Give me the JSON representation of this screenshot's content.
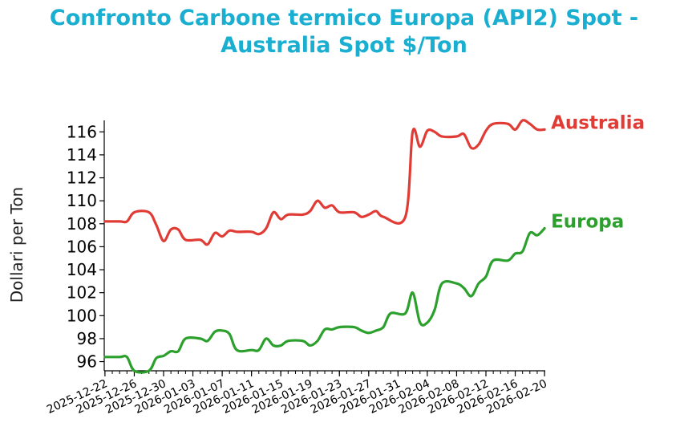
{
  "chart_data": {
    "type": "line",
    "title_line1": "Confronto Carbone termico Europa (API2) Spot -",
    "title_line2": "Australia Spot $/Ton",
    "xlabel": "",
    "ylabel": "Dollari per Ton",
    "xlim": [
      "2025-12-22",
      "2026-02-20"
    ],
    "ylim": [
      95.2,
      117.0
    ],
    "yticks": [
      96,
      98,
      100,
      102,
      104,
      106,
      108,
      110,
      112,
      114,
      116
    ],
    "xticks": [
      "2025-12-22",
      "2025-12-26",
      "2025-12-30",
      "2026-01-03",
      "2026-01-07",
      "2026-01-11",
      "2026-01-15",
      "2026-01-19",
      "2026-01-23",
      "2026-01-27",
      "2026-01-31",
      "2026-02-04",
      "2026-02-08",
      "2026-02-12",
      "2026-02-16",
      "2026-02-20"
    ],
    "grid": false,
    "legend": "end-of-line labels",
    "series": [
      {
        "name": "Australia",
        "color": "#e03c35",
        "points": [
          [
            "2025-12-22",
            108.2
          ],
          [
            "2025-12-24",
            108.2
          ],
          [
            "2025-12-25",
            108.2
          ],
          [
            "2025-12-26",
            109.0
          ],
          [
            "2025-12-28",
            109.0
          ],
          [
            "2025-12-29",
            107.9
          ],
          [
            "2025-12-30",
            106.5
          ],
          [
            "2025-12-31",
            107.5
          ],
          [
            "2026-01-01",
            107.5
          ],
          [
            "2026-01-02",
            106.6
          ],
          [
            "2026-01-04",
            106.6
          ],
          [
            "2026-01-05",
            106.2
          ],
          [
            "2026-01-06",
            107.2
          ],
          [
            "2026-01-07",
            106.9
          ],
          [
            "2026-01-08",
            107.4
          ],
          [
            "2026-01-09",
            107.3
          ],
          [
            "2026-01-11",
            107.3
          ],
          [
            "2026-01-12",
            107.1
          ],
          [
            "2026-01-13",
            107.6
          ],
          [
            "2026-01-14",
            109.0
          ],
          [
            "2026-01-15",
            108.4
          ],
          [
            "2026-01-16",
            108.8
          ],
          [
            "2026-01-18",
            108.8
          ],
          [
            "2026-01-19",
            109.1
          ],
          [
            "2026-01-20",
            110.0
          ],
          [
            "2026-01-21",
            109.4
          ],
          [
            "2026-01-22",
            109.6
          ],
          [
            "2026-01-23",
            109.0
          ],
          [
            "2026-01-25",
            109.0
          ],
          [
            "2026-01-26",
            108.6
          ],
          [
            "2026-01-27",
            108.8
          ],
          [
            "2026-01-28",
            109.1
          ],
          [
            "2026-01-29",
            108.6
          ],
          [
            "2026-02-01",
            108.6
          ],
          [
            "2026-02-02",
            116.0
          ],
          [
            "2026-02-03",
            114.7
          ],
          [
            "2026-02-04",
            116.1
          ],
          [
            "2026-02-05",
            116.0
          ],
          [
            "2026-02-06",
            115.6
          ],
          [
            "2026-02-08",
            115.6
          ],
          [
            "2026-02-09",
            115.8
          ],
          [
            "2026-02-10",
            114.6
          ],
          [
            "2026-02-11",
            114.9
          ],
          [
            "2026-02-12",
            116.1
          ],
          [
            "2026-02-13",
            116.7
          ],
          [
            "2026-02-15",
            116.7
          ],
          [
            "2026-02-16",
            116.2
          ],
          [
            "2026-02-17",
            117.0
          ],
          [
            "2026-02-18",
            116.7
          ],
          [
            "2026-02-19",
            116.2
          ],
          [
            "2026-02-20",
            116.2
          ]
        ]
      },
      {
        "name": "Europa",
        "color": "#2ca02c",
        "points": [
          [
            "2025-12-22",
            96.4
          ],
          [
            "2025-12-24",
            96.4
          ],
          [
            "2025-12-25",
            96.4
          ],
          [
            "2025-12-26",
            95.2
          ],
          [
            "2025-12-28",
            95.2
          ],
          [
            "2025-12-29",
            96.3
          ],
          [
            "2025-12-30",
            96.5
          ],
          [
            "2025-12-31",
            96.9
          ],
          [
            "2026-01-01",
            96.9
          ],
          [
            "2026-01-02",
            98.0
          ],
          [
            "2026-01-04",
            98.0
          ],
          [
            "2026-01-05",
            97.8
          ],
          [
            "2026-01-06",
            98.6
          ],
          [
            "2026-01-07",
            98.7
          ],
          [
            "2026-01-08",
            98.4
          ],
          [
            "2026-01-09",
            97.0
          ],
          [
            "2026-01-11",
            97.0
          ],
          [
            "2026-01-12",
            97.0
          ],
          [
            "2026-01-13",
            98.0
          ],
          [
            "2026-01-14",
            97.4
          ],
          [
            "2026-01-15",
            97.4
          ],
          [
            "2026-01-16",
            97.8
          ],
          [
            "2026-01-18",
            97.8
          ],
          [
            "2026-01-19",
            97.4
          ],
          [
            "2026-01-20",
            97.8
          ],
          [
            "2026-01-21",
            98.8
          ],
          [
            "2026-01-22",
            98.8
          ],
          [
            "2026-01-23",
            99.0
          ],
          [
            "2026-01-25",
            99.0
          ],
          [
            "2026-01-26",
            98.7
          ],
          [
            "2026-01-27",
            98.5
          ],
          [
            "2026-01-28",
            98.7
          ],
          [
            "2026-01-29",
            99.0
          ],
          [
            "2026-01-30",
            100.2
          ],
          [
            "2026-02-01",
            100.2
          ],
          [
            "2026-02-02",
            102.0
          ],
          [
            "2026-02-03",
            99.4
          ],
          [
            "2026-02-04",
            99.4
          ],
          [
            "2026-02-05",
            100.5
          ],
          [
            "2026-02-06",
            102.8
          ],
          [
            "2026-02-08",
            102.8
          ],
          [
            "2026-02-09",
            102.4
          ],
          [
            "2026-02-10",
            101.7
          ],
          [
            "2026-02-11",
            102.8
          ],
          [
            "2026-02-12",
            103.4
          ],
          [
            "2026-02-13",
            104.8
          ],
          [
            "2026-02-15",
            104.8
          ],
          [
            "2026-02-16",
            105.4
          ],
          [
            "2026-02-17",
            105.6
          ],
          [
            "2026-02-18",
            107.2
          ],
          [
            "2026-02-19",
            107.0
          ],
          [
            "2026-02-20",
            107.6
          ]
        ]
      }
    ]
  }
}
